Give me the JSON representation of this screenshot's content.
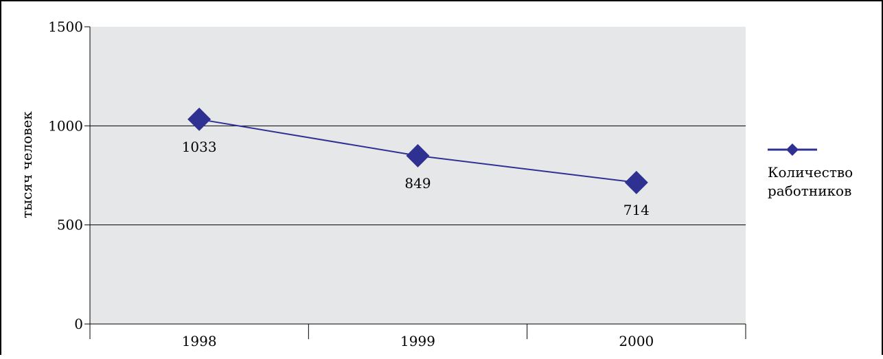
{
  "chart_data": {
    "type": "line",
    "title": "",
    "xlabel": "",
    "ylabel": "тысяч человек",
    "categories": [
      "1998",
      "1999",
      "2000"
    ],
    "series": [
      {
        "name": "Количество работников",
        "values": [
          1033,
          849,
          714
        ],
        "data_labels": [
          "1033",
          "849",
          "714"
        ],
        "color": "#2e3192",
        "marker": "diamond"
      }
    ],
    "ylim": [
      0,
      1500
    ],
    "yticks": [
      0,
      500,
      1000,
      1500
    ],
    "ytick_labels": [
      "0",
      "500",
      "1000",
      "1500"
    ],
    "grid": true,
    "legend_position": "right",
    "plot_background": "#e6e7e8",
    "gridline_color": "#000000"
  },
  "legend": {
    "line1": "Количество",
    "line2": "работников"
  }
}
